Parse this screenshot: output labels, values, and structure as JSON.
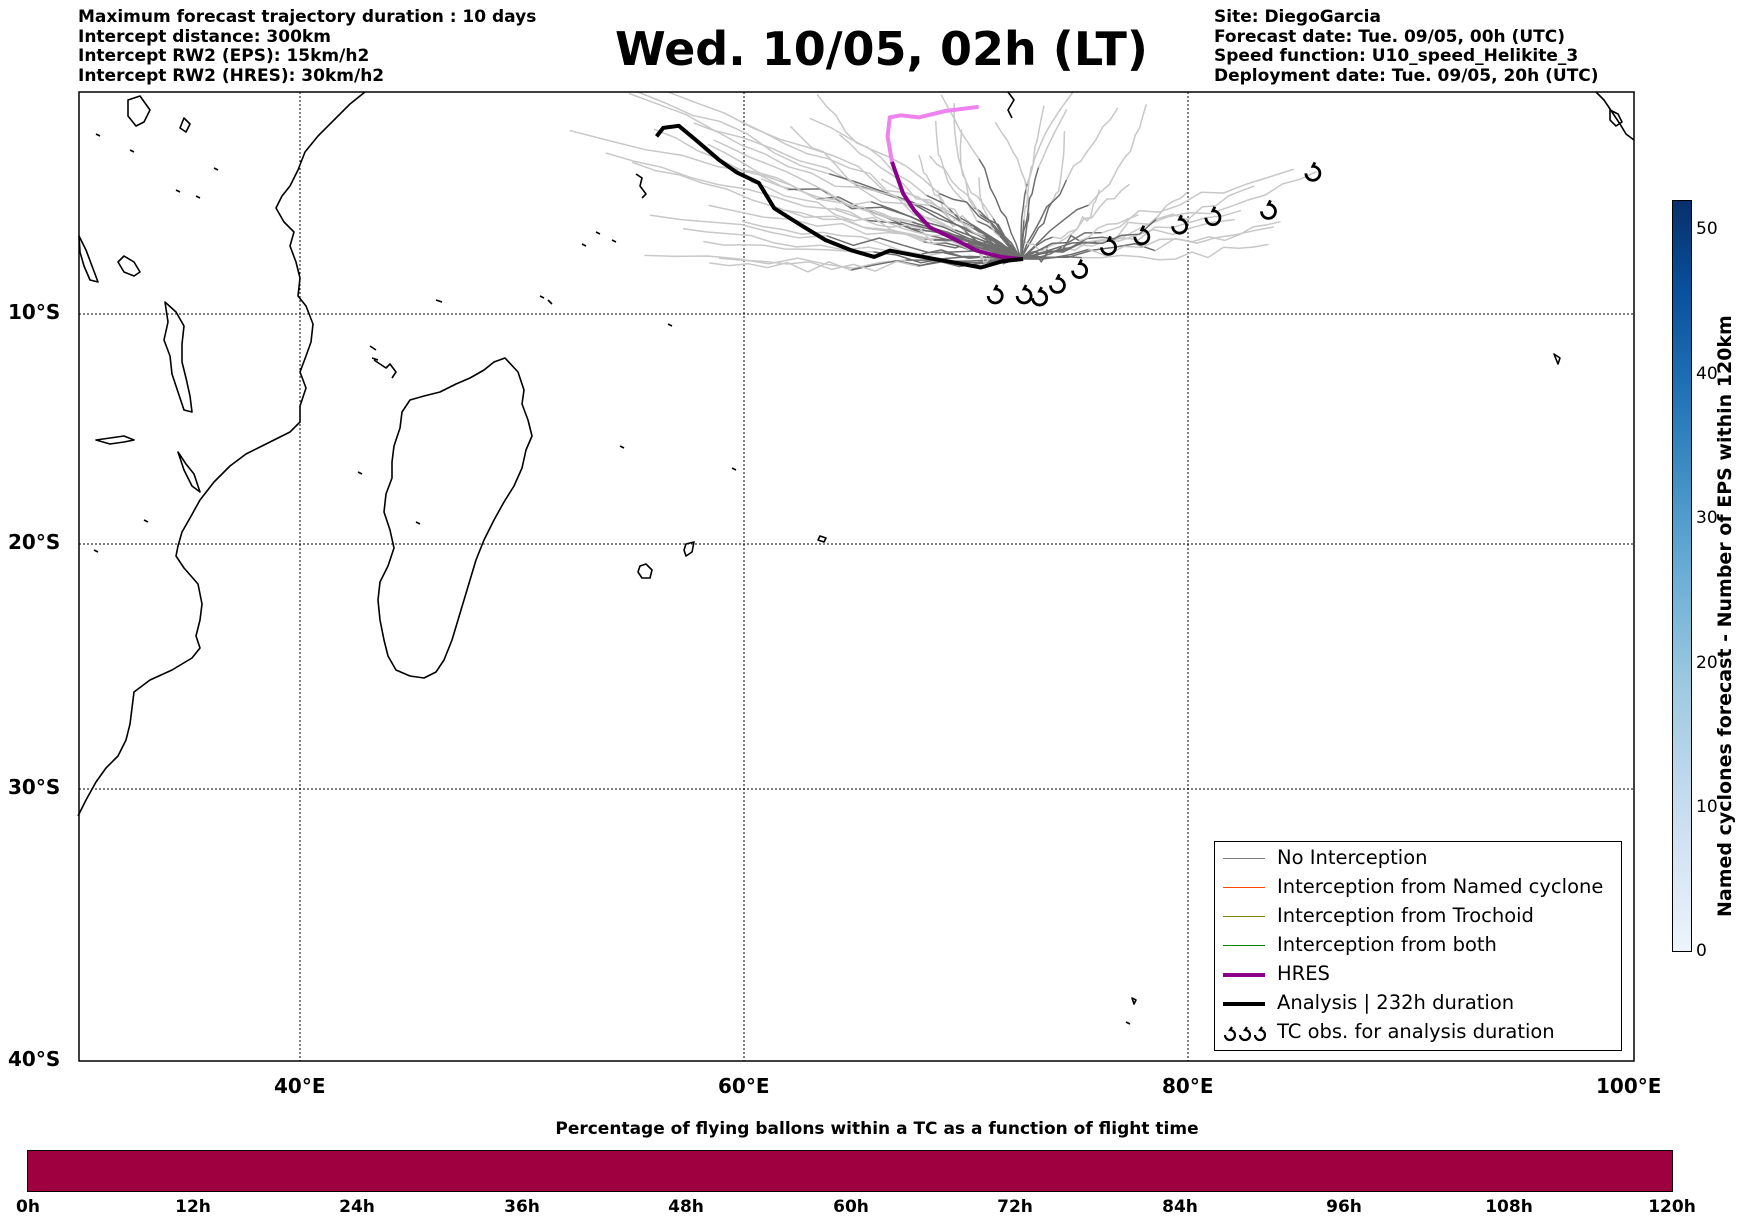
{
  "header_left": [
    "Maximum forecast trajectory duration : 10 days",
    "Intercept distance: 300km",
    "Intercept RW2 (EPS):  15km/h2",
    "Intercept RW2 (HRES): 30km/h2"
  ],
  "header_right": [
    "Site: DiegoGarcia",
    "Forecast date: Tue. 09/05, 00h (UTC)",
    "Speed function: U10_speed_Helikite_3",
    "Deployment date: Tue. 09/05, 20h (UTC)"
  ],
  "title": "Wed. 10/05, 02h (LT)",
  "map": {
    "extent": {
      "lon": [
        30,
        100
      ],
      "lat": [
        -40,
        0.5
      ]
    },
    "lat_labels": [
      "10°S",
      "20°S",
      "30°S",
      "40°S"
    ],
    "lon_labels": [
      "40°E",
      "60°E",
      "80°E",
      "100°E"
    ],
    "colors": {
      "eps": "#6e6e6e",
      "eps_light": "#c8c8c8",
      "hres": "#8b008b",
      "hres_light": "#ee82ee",
      "analysis": "#000000"
    },
    "tc_obs": [
      [
        71.2,
        -9.1
      ],
      [
        72.5,
        -9.1
      ],
      [
        73.2,
        -9.2
      ],
      [
        74.0,
        -8.6
      ],
      [
        75.0,
        -7.9
      ],
      [
        76.3,
        -6.8
      ],
      [
        77.8,
        -6.3
      ],
      [
        79.5,
        -5.8
      ],
      [
        81.0,
        -5.4
      ],
      [
        83.5,
        -5.1
      ],
      [
        85.5,
        -3.3
      ]
    ]
  },
  "legend": {
    "items": [
      {
        "label": "No Interception",
        "color": "#808080"
      },
      {
        "label": "Interception from Named cyclone",
        "color": "#ff4500"
      },
      {
        "label": "Interception from Trochoid",
        "color": "#808000"
      },
      {
        "label": "Interception from both",
        "color": "#008000"
      },
      {
        "label": "HRES",
        "color": "#8b008b"
      },
      {
        "label": "Analysis | 232h duration",
        "color": "#000000"
      },
      {
        "label": "TC obs. for analysis duration",
        "color": "#000000"
      }
    ]
  },
  "colorbar_vertical": {
    "label": "Named cyclones forecast - Number of EPS within 120km",
    "ticks": [
      "0",
      "10",
      "20",
      "30",
      "40",
      "50"
    ]
  },
  "colorbar_horizontal": {
    "title": "Percentage of flying ballons within a TC as a function of flight time",
    "ticks": [
      "0h",
      "12h",
      "24h",
      "36h",
      "48h",
      "60h",
      "72h",
      "84h",
      "96h",
      "108h",
      "120h"
    ],
    "fill_color": "#9e0040"
  }
}
